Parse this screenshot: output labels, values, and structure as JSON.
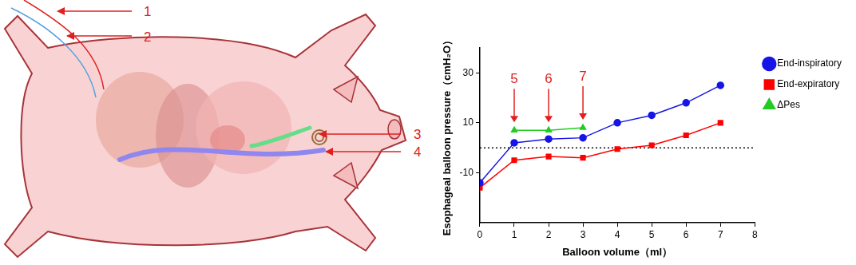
{
  "diagram": {
    "labels": [
      "1",
      "2",
      "3",
      "4"
    ]
  },
  "chart_data": {
    "type": "line",
    "x_label": "Balloon volume（ml）",
    "y_label": "Esophageal balloon pressure（cmH₂O）",
    "x": [
      0,
      1,
      2,
      3,
      4,
      5,
      6,
      7
    ],
    "series": [
      {
        "name": "End-inspiratory",
        "color": "#1515e8",
        "marker": "circle",
        "line_style": "solid",
        "values": [
          -14,
          2,
          3.5,
          4,
          10,
          13,
          18,
          25
        ]
      },
      {
        "name": "End-expiratory",
        "color": "#ff0000",
        "marker": "square",
        "line_style": "solid",
        "values": [
          -16,
          -5,
          -3.5,
          -4,
          -0.5,
          1,
          5,
          10
        ]
      },
      {
        "name": "ΔPes",
        "color": "#22cc22",
        "marker": "triangle",
        "line_style": "solid",
        "values": [
          null,
          7,
          7,
          8,
          null,
          null,
          null,
          null
        ]
      }
    ],
    "xlim": [
      0,
      8
    ],
    "xticks": [
      0,
      1,
      2,
      3,
      4,
      5,
      6,
      7,
      8
    ],
    "ylim": [
      -30,
      40
    ],
    "yticks": [
      -10,
      10,
      30
    ],
    "reference_lines": [
      {
        "value": 0,
        "line_style": "dotted"
      }
    ],
    "annotations": [
      {
        "text": "5",
        "x": 1,
        "series": "ΔPes",
        "color": "#e02020"
      },
      {
        "text": "6",
        "x": 2,
        "series": "ΔPes",
        "color": "#e02020"
      },
      {
        "text": "7",
        "x": 3,
        "series": "ΔPes",
        "color": "#e02020"
      }
    ],
    "legend": "right",
    "grid": false
  }
}
